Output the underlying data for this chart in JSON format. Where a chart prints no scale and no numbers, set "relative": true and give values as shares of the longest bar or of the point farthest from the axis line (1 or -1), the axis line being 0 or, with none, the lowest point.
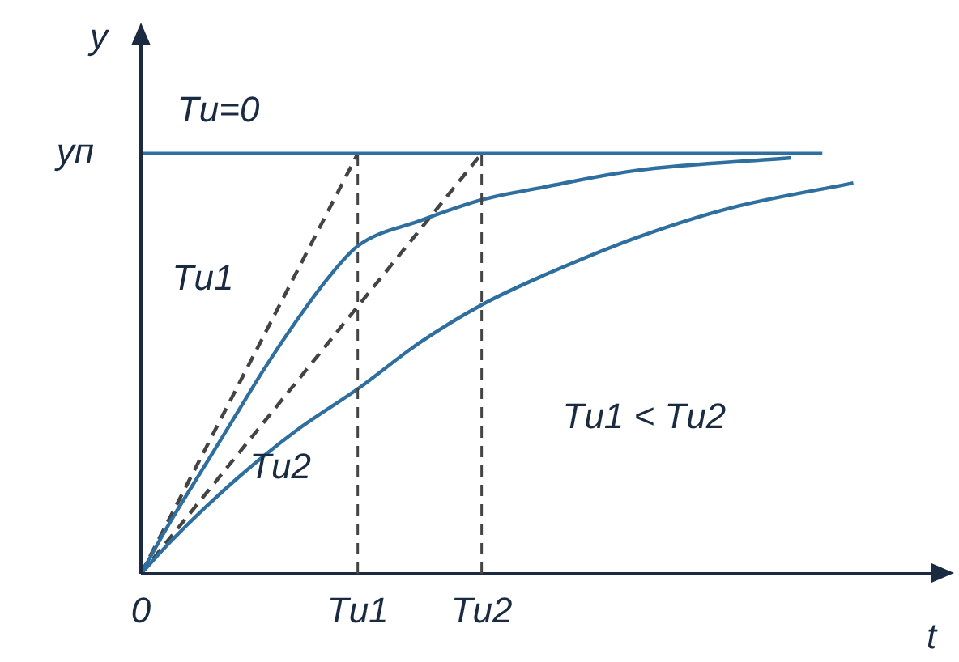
{
  "chart_data": {
    "type": "line",
    "relative": true,
    "xlabel": "t",
    "ylabel": "y",
    "legend": false,
    "marker": "none",
    "categories": [
      "0",
      null,
      null,
      null,
      null,
      null,
      null,
      "Tи1",
      null,
      null,
      null,
      "Tи2",
      null,
      null,
      null,
      null,
      null,
      null,
      null,
      null,
      null,
      null,
      null,
      null,
      null,
      null
    ],
    "series": [
      {
        "color": "#2f6f9f",
        "values": [
          1,
          1,
          1,
          1,
          1,
          1,
          1,
          1,
          1,
          1,
          1,
          1,
          1,
          1,
          1,
          1,
          1,
          1,
          1,
          1,
          1,
          1,
          1,
          null,
          null,
          null
        ]
      },
      {
        "color": "#2f6f9f",
        "values": [
          0,
          0.13,
          0.25,
          0.37,
          0.49,
          0.6,
          0.7,
          0.78,
          null,
          0.84,
          null,
          0.89,
          null,
          0.92,
          null,
          null,
          0.96,
          null,
          null,
          null,
          null,
          0.99,
          null,
          null,
          null,
          null
        ]
      },
      {
        "color": "#2f6f9f",
        "values": [
          0,
          0.08,
          null,
          0.22,
          null,
          0.34,
          null,
          0.44,
          null,
          0.55,
          null,
          0.64,
          null,
          0.71,
          null,
          null,
          0.8,
          null,
          null,
          0.87,
          null,
          null,
          null,
          0.93,
          null,
          null
        ]
      },
      {
        "color": "#444444",
        "line_style": "dashed",
        "values": [
          0,
          null,
          null,
          null,
          null,
          null,
          null,
          1,
          null,
          null,
          null,
          null,
          null,
          null,
          null,
          null,
          null,
          null,
          null,
          null,
          null,
          null,
          null,
          null,
          null,
          null
        ]
      },
      {
        "color": "#444444",
        "line_style": "dashed",
        "values": [
          0,
          null,
          null,
          null,
          null,
          null,
          null,
          null,
          null,
          null,
          null,
          1,
          null,
          null,
          null,
          null,
          null,
          null,
          null,
          null,
          null,
          null,
          null,
          null,
          null,
          null
        ]
      }
    ],
    "ref_lines": [
      {
        "axis": "x",
        "value": "Tи1",
        "line_style": "dashed",
        "color": "#444444"
      },
      {
        "axis": "x",
        "value": "Tи2",
        "line_style": "dashed",
        "color": "#444444"
      }
    ],
    "annotations": [
      "yп",
      "Tи=0",
      "Tи1",
      "Tи2",
      "Tи1 < Tи2"
    ]
  }
}
